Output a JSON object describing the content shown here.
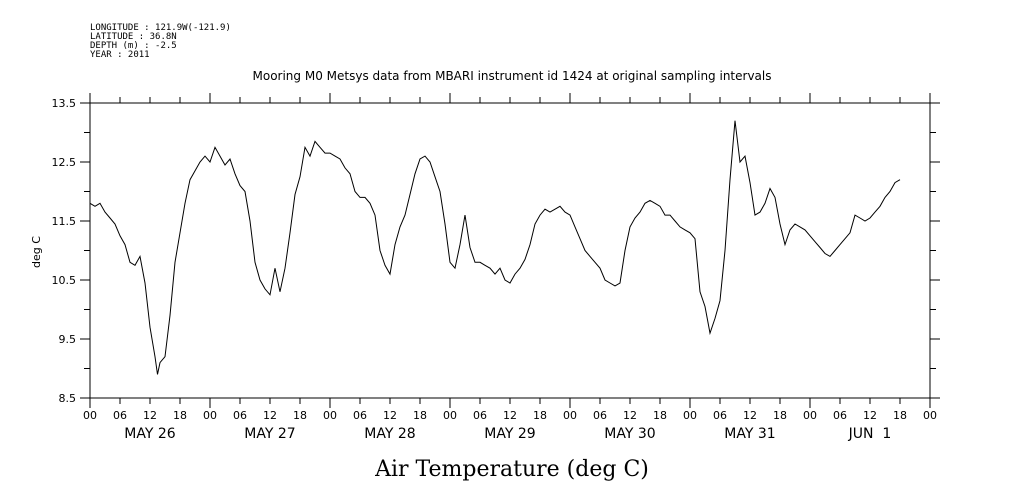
{
  "header": {
    "longitude": "LONGITUDE : 121.9W(-121.9)",
    "latitude": "LATITUDE : 36.8N",
    "depth": "DEPTH (m) : -2.5",
    "year": "YEAR : 2011"
  },
  "chart_data": {
    "type": "line",
    "title": "Mooring M0 Metsys data from MBARI instrument id 1424 at original sampling intervals",
    "xlabel": "Air Temperature (deg C)",
    "ylabel": "deg C",
    "ylim": [
      8.5,
      13.5
    ],
    "xlim_hours": [
      0,
      168
    ],
    "y_ticks": [
      "13.5",
      "12.5",
      "11.5",
      "10.5",
      "9.5",
      "8.5"
    ],
    "x_hour_labels": [
      "00",
      "06",
      "12",
      "18",
      "00",
      "06",
      "12",
      "18",
      "00",
      "06",
      "12",
      "18",
      "00",
      "06",
      "12",
      "18",
      "00",
      "06",
      "12",
      "18",
      "00",
      "06",
      "12",
      "18",
      "00",
      "06",
      "12",
      "18",
      "00"
    ],
    "date_labels": [
      "MAY 26",
      "MAY 27",
      "MAY 28",
      "MAY 29",
      "MAY 30",
      "MAY 31",
      "JUN  1"
    ],
    "series": [
      {
        "color": "#000000",
        "points": [
          [
            0,
            11.8
          ],
          [
            1,
            11.75
          ],
          [
            2,
            11.8
          ],
          [
            3,
            11.65
          ],
          [
            4,
            11.55
          ],
          [
            5,
            11.45
          ],
          [
            6,
            11.25
          ],
          [
            7,
            11.1
          ],
          [
            8,
            10.8
          ],
          [
            9,
            10.75
          ],
          [
            10,
            10.9
          ],
          [
            11,
            10.45
          ],
          [
            12,
            9.7
          ],
          [
            13,
            9.2
          ],
          [
            13.5,
            8.9
          ],
          [
            14,
            9.1
          ],
          [
            15,
            9.2
          ],
          [
            16,
            9.9
          ],
          [
            17,
            10.8
          ],
          [
            18,
            11.3
          ],
          [
            19,
            11.8
          ],
          [
            20,
            12.2
          ],
          [
            21,
            12.35
          ],
          [
            22,
            12.5
          ],
          [
            23,
            12.6
          ],
          [
            24,
            12.5
          ],
          [
            25,
            12.75
          ],
          [
            26,
            12.6
          ],
          [
            27,
            12.45
          ],
          [
            28,
            12.55
          ],
          [
            29,
            12.3
          ],
          [
            30,
            12.1
          ],
          [
            31,
            12.0
          ],
          [
            32,
            11.5
          ],
          [
            33,
            10.8
          ],
          [
            34,
            10.5
          ],
          [
            35,
            10.35
          ],
          [
            36,
            10.25
          ],
          [
            37,
            10.7
          ],
          [
            38,
            10.3
          ],
          [
            39,
            10.7
          ],
          [
            40,
            11.3
          ],
          [
            41,
            11.95
          ],
          [
            42,
            12.25
          ],
          [
            43,
            12.75
          ],
          [
            44,
            12.6
          ],
          [
            45,
            12.85
          ],
          [
            46,
            12.75
          ],
          [
            47,
            12.65
          ],
          [
            48,
            12.65
          ],
          [
            49,
            12.6
          ],
          [
            50,
            12.55
          ],
          [
            51,
            12.4
          ],
          [
            52,
            12.3
          ],
          [
            53,
            12.0
          ],
          [
            54,
            11.9
          ],
          [
            55,
            11.9
          ],
          [
            56,
            11.8
          ],
          [
            57,
            11.6
          ],
          [
            58,
            11.0
          ],
          [
            59,
            10.75
          ],
          [
            60,
            10.6
          ],
          [
            61,
            11.1
          ],
          [
            62,
            11.4
          ],
          [
            63,
            11.6
          ],
          [
            64,
            11.95
          ],
          [
            65,
            12.3
          ],
          [
            66,
            12.55
          ],
          [
            67,
            12.6
          ],
          [
            68,
            12.5
          ],
          [
            69,
            12.25
          ],
          [
            70,
            12.0
          ],
          [
            71,
            11.45
          ],
          [
            72,
            10.8
          ],
          [
            73,
            10.7
          ],
          [
            74,
            11.1
          ],
          [
            75,
            11.6
          ],
          [
            76,
            11.05
          ],
          [
            77,
            10.8
          ],
          [
            78,
            10.8
          ],
          [
            79,
            10.75
          ],
          [
            80,
            10.7
          ],
          [
            81,
            10.6
          ],
          [
            82,
            10.7
          ],
          [
            83,
            10.5
          ],
          [
            84,
            10.45
          ],
          [
            85,
            10.6
          ],
          [
            86,
            10.7
          ],
          [
            87,
            10.85
          ],
          [
            88,
            11.1
          ],
          [
            89,
            11.45
          ],
          [
            90,
            11.6
          ],
          [
            91,
            11.7
          ],
          [
            92,
            11.65
          ],
          [
            93,
            11.7
          ],
          [
            94,
            11.75
          ],
          [
            95,
            11.65
          ],
          [
            96,
            11.6
          ],
          [
            97,
            11.4
          ],
          [
            98,
            11.2
          ],
          [
            99,
            11.0
          ],
          [
            100,
            10.9
          ],
          [
            101,
            10.8
          ],
          [
            102,
            10.7
          ],
          [
            103,
            10.5
          ],
          [
            104,
            10.45
          ],
          [
            105,
            10.4
          ],
          [
            106,
            10.45
          ],
          [
            107,
            11.0
          ],
          [
            108,
            11.4
          ],
          [
            109,
            11.55
          ],
          [
            110,
            11.65
          ],
          [
            111,
            11.8
          ],
          [
            112,
            11.85
          ],
          [
            113,
            11.8
          ],
          [
            114,
            11.75
          ],
          [
            115,
            11.6
          ],
          [
            116,
            11.6
          ],
          [
            117,
            11.5
          ],
          [
            118,
            11.4
          ],
          [
            119,
            11.35
          ],
          [
            120,
            11.3
          ],
          [
            121,
            11.2
          ],
          [
            122,
            10.3
          ],
          [
            123,
            10.05
          ],
          [
            124,
            9.6
          ],
          [
            125,
            9.85
          ],
          [
            126,
            10.15
          ],
          [
            127,
            11.0
          ],
          [
            128,
            12.2
          ],
          [
            129,
            13.2
          ],
          [
            130,
            12.5
          ],
          [
            131,
            12.6
          ],
          [
            132,
            12.15
          ],
          [
            133,
            11.6
          ],
          [
            134,
            11.65
          ],
          [
            135,
            11.8
          ],
          [
            136,
            12.05
          ],
          [
            137,
            11.9
          ],
          [
            138,
            11.45
          ],
          [
            139,
            11.1
          ],
          [
            140,
            11.35
          ],
          [
            141,
            11.45
          ],
          [
            142,
            11.4
          ],
          [
            143,
            11.35
          ],
          [
            144,
            11.25
          ],
          [
            145,
            11.15
          ],
          [
            146,
            11.05
          ],
          [
            147,
            10.95
          ],
          [
            148,
            10.9
          ],
          [
            149,
            11.0
          ],
          [
            150,
            11.1
          ],
          [
            151,
            11.2
          ],
          [
            152,
            11.3
          ],
          [
            153,
            11.6
          ],
          [
            154,
            11.55
          ],
          [
            155,
            11.5
          ],
          [
            156,
            11.55
          ],
          [
            157,
            11.65
          ],
          [
            158,
            11.75
          ],
          [
            159,
            11.9
          ],
          [
            160,
            12.0
          ],
          [
            161,
            12.15
          ],
          [
            162,
            12.2
          ]
        ]
      }
    ]
  }
}
